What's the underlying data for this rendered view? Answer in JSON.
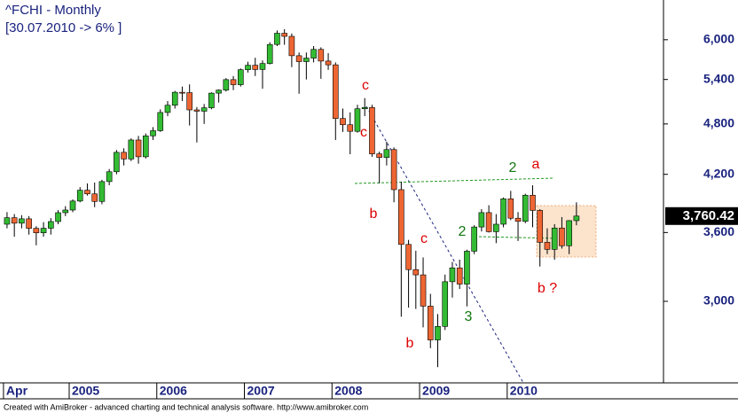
{
  "chart_data": {
    "type": "candlestick",
    "title": "^FCHI - Monthly",
    "subtitle": "[30.07.2010 -> 6% ]",
    "footer": "Created with AmiBroker - advanced charting and technical analysis software. http://www.amibroker.com",
    "log_scale": true,
    "up_color": "#33bb33",
    "down_color": "#ee6633",
    "ylim": [
      2417,
      6666
    ],
    "yticks": [
      {
        "value": 3000,
        "label": "3,000"
      },
      {
        "value": 3600,
        "label": "3,600"
      },
      {
        "value": 4200,
        "label": "4,200"
      },
      {
        "value": 4800,
        "label": "4,800"
      },
      {
        "value": 5400,
        "label": "5,400"
      },
      {
        "value": 6000,
        "label": "6,000"
      }
    ],
    "last_price": {
      "value": 3760.42,
      "label": "3,760.42"
    },
    "categories": [
      "Apr",
      null,
      null,
      null,
      null,
      null,
      null,
      null,
      null,
      "2005",
      null,
      null,
      null,
      null,
      null,
      null,
      null,
      null,
      null,
      null,
      null,
      "2006",
      null,
      null,
      null,
      null,
      null,
      null,
      null,
      null,
      null,
      null,
      null,
      "2007",
      null,
      null,
      null,
      null,
      null,
      null,
      null,
      null,
      null,
      null,
      null,
      "2008",
      null,
      null,
      null,
      null,
      null,
      null,
      null,
      null,
      null,
      null,
      null,
      "2009",
      null,
      null,
      null,
      null,
      null,
      null,
      null,
      null,
      null,
      null,
      null,
      "2010",
      null,
      null,
      null,
      null,
      null,
      null,
      null,
      null,
      null
    ],
    "open": [
      3680,
      3744,
      3690,
      3733,
      3640,
      3597,
      3641,
      3706,
      3794,
      3821,
      3913,
      4027,
      3988,
      3909,
      4120,
      4229,
      4452,
      4374,
      4600,
      4400,
      4651,
      4715,
      4948,
      5044,
      5220,
      5215,
      4982,
      4965,
      5010,
      5208,
      5250,
      5398,
      5326,
      5542,
      5608,
      5545,
      5634,
      5925,
      6104,
      6054,
      5751,
      5662,
      5715,
      5848,
      5670,
      5614,
      4870,
      4790,
      4707,
      4997,
      5014,
      4434,
      4392,
      4485,
      4033,
      3488,
      3263,
      3218,
      2962,
      2708,
      2807,
      3160,
      3278,
      3140,
      3426,
      3653,
      3795,
      3608,
      3680,
      3936,
      3739,
      3708,
      3974,
      3817,
      3508,
      3443,
      3643,
      3476,
      3715
    ],
    "high": [
      3800,
      3780,
      3770,
      3760,
      3660,
      3700,
      3740,
      3820,
      3860,
      3930,
      4060,
      4100,
      4110,
      4140,
      4260,
      4480,
      4500,
      4620,
      4650,
      4680,
      4760,
      4990,
      5100,
      5240,
      5300,
      5330,
      5020,
      5060,
      5220,
      5260,
      5420,
      5450,
      5560,
      5660,
      5720,
      5680,
      5960,
      6150,
      6170,
      6100,
      5800,
      5800,
      5900,
      5880,
      5790,
      5650,
      5000,
      4950,
      5050,
      5140,
      5050,
      4460,
      4580,
      4510,
      4120,
      3530,
      3430,
      3370,
      3060,
      2900,
      3220,
      3330,
      3350,
      3440,
      3670,
      3830,
      3870,
      3780,
      3950,
      4020,
      3800,
      3990,
      4080,
      3830,
      3640,
      3680,
      3750,
      3720,
      3900
    ],
    "low": [
      3640,
      3560,
      3640,
      3580,
      3480,
      3560,
      3580,
      3680,
      3760,
      3800,
      3900,
      3970,
      3850,
      3880,
      4080,
      4200,
      4300,
      4350,
      4320,
      4380,
      4600,
      4700,
      4900,
      5000,
      5100,
      4780,
      4570,
      4800,
      4990,
      5080,
      5230,
      5250,
      5300,
      5500,
      5450,
      5270,
      5620,
      5900,
      5920,
      5580,
      5200,
      5400,
      5650,
      5410,
      5540,
      4600,
      4700,
      4430,
      4690,
      4900,
      4400,
      4100,
      4300,
      3900,
      2880,
      2950,
      2940,
      2800,
      2650,
      2520,
      2780,
      3030,
      3100,
      2960,
      3400,
      3610,
      3600,
      3500,
      3650,
      3720,
      3520,
      3690,
      3650,
      3290,
      3400,
      3350,
      3450,
      3400,
      3670
    ],
    "close": [
      3744,
      3690,
      3733,
      3640,
      3597,
      3641,
      3706,
      3794,
      3821,
      3913,
      4027,
      3988,
      3909,
      4120,
      4229,
      4452,
      4374,
      4600,
      4400,
      4651,
      4715,
      4948,
      5044,
      5220,
      5215,
      4982,
      4965,
      5010,
      5208,
      5250,
      5398,
      5326,
      5542,
      5608,
      5545,
      5634,
      5925,
      6104,
      6054,
      5751,
      5662,
      5715,
      5848,
      5670,
      5614,
      4870,
      4790,
      4707,
      4997,
      5014,
      4434,
      4392,
      4485,
      4033,
      3488,
      3263,
      3218,
      2962,
      2708,
      2807,
      3160,
      3278,
      3140,
      3426,
      3653,
      3795,
      3608,
      3680,
      3936,
      3739,
      3708,
      3974,
      3817,
      3508,
      3443,
      3643,
      3476,
      3715,
      3760.42
    ],
    "annotations": [
      {
        "text": "c",
        "color": "#dd0000"
      },
      {
        "text": "c",
        "color": "#dd0000"
      },
      {
        "text": "b",
        "color": "#dd0000"
      },
      {
        "text": "c",
        "color": "#dd0000"
      },
      {
        "text": "b",
        "color": "#dd0000"
      },
      {
        "text": "2",
        "color": "#117711"
      },
      {
        "text": "2",
        "color": "#117711"
      },
      {
        "text": "a",
        "color": "#dd0000"
      },
      {
        "text": "3",
        "color": "#117711"
      },
      {
        "text": "b ?",
        "color": "#dd0000"
      }
    ]
  }
}
